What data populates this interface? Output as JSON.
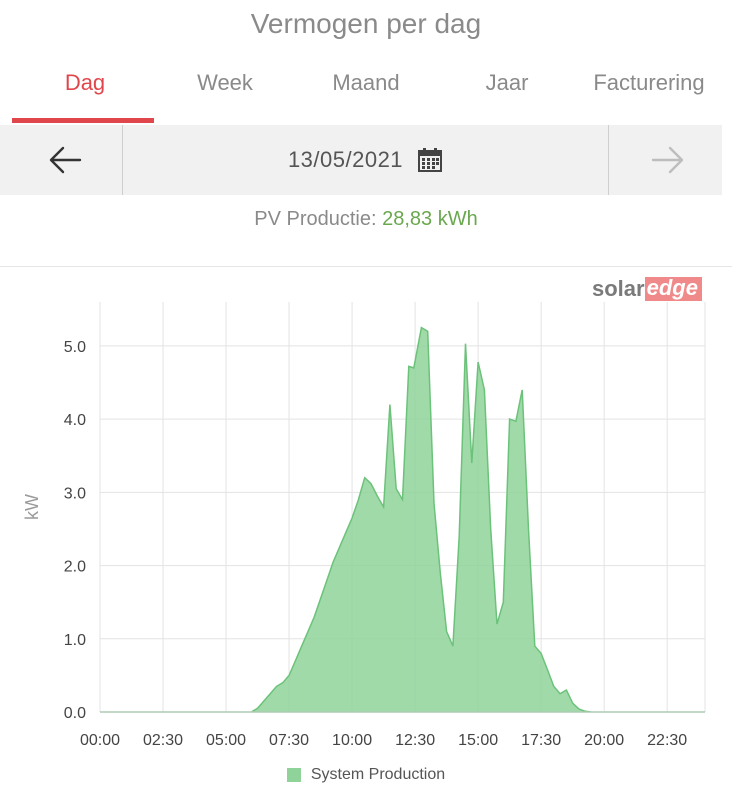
{
  "header": {
    "title": "Vermogen per dag"
  },
  "tabs": [
    {
      "label": "Dag",
      "active": true
    },
    {
      "label": "Week",
      "active": false
    },
    {
      "label": "Maand",
      "active": false
    },
    {
      "label": "Jaar",
      "active": false
    },
    {
      "label": "Facturering",
      "active": false
    }
  ],
  "datebar": {
    "date": "13/05/2021"
  },
  "summary": {
    "label": "PV Productie:",
    "value": "28,83 kWh"
  },
  "logo": {
    "solar": "solar",
    "edge": "edge"
  },
  "colors": {
    "accent": "#e0474c",
    "production": "#8fd39a",
    "value": "#6aa84f"
  },
  "chart_data": {
    "type": "area",
    "title": "",
    "xlabel": "",
    "ylabel": "kW",
    "ylim": [
      0,
      5.6
    ],
    "yticks": [
      0.0,
      1.0,
      2.0,
      3.0,
      4.0,
      5.0
    ],
    "ytick_labels": [
      "0.0",
      "1.0",
      "2.0",
      "3.0",
      "4.0",
      "5.0"
    ],
    "xlim_hours": [
      0,
      24
    ],
    "xticks_hours": [
      0,
      2.5,
      5,
      7.5,
      10,
      12.5,
      15,
      17.5,
      20,
      22.5
    ],
    "xtick_labels": [
      "00:00",
      "02:30",
      "05:00",
      "07:30",
      "10:00",
      "12:30",
      "15:00",
      "17:30",
      "20:00",
      "22:30"
    ],
    "grid": true,
    "legend_position": "bottom",
    "series": [
      {
        "name": "System Production",
        "color": "#8fd39a",
        "points": [
          [
            0,
            0
          ],
          [
            6.0,
            0
          ],
          [
            6.25,
            0.05
          ],
          [
            6.5,
            0.15
          ],
          [
            6.75,
            0.25
          ],
          [
            7.0,
            0.35
          ],
          [
            7.25,
            0.4
          ],
          [
            7.5,
            0.5
          ],
          [
            7.75,
            0.7
          ],
          [
            8.0,
            0.9
          ],
          [
            8.25,
            1.1
          ],
          [
            8.5,
            1.3
          ],
          [
            8.75,
            1.55
          ],
          [
            9.0,
            1.8
          ],
          [
            9.25,
            2.05
          ],
          [
            9.5,
            2.25
          ],
          [
            9.75,
            2.45
          ],
          [
            10.0,
            2.65
          ],
          [
            10.25,
            2.9
          ],
          [
            10.5,
            3.2
          ],
          [
            10.75,
            3.12
          ],
          [
            11.0,
            2.95
          ],
          [
            11.25,
            2.8
          ],
          [
            11.5,
            4.2
          ],
          [
            11.75,
            3.05
          ],
          [
            12.0,
            2.9
          ],
          [
            12.25,
            4.72
          ],
          [
            12.45,
            4.7
          ],
          [
            12.75,
            5.25
          ],
          [
            13.0,
            5.2
          ],
          [
            13.25,
            2.85
          ],
          [
            13.5,
            1.9
          ],
          [
            13.75,
            1.1
          ],
          [
            14.0,
            0.9
          ],
          [
            14.25,
            2.4
          ],
          [
            14.5,
            5.03
          ],
          [
            14.75,
            3.4
          ],
          [
            15.0,
            4.78
          ],
          [
            15.25,
            4.4
          ],
          [
            15.5,
            2.5
          ],
          [
            15.75,
            1.2
          ],
          [
            16.0,
            1.5
          ],
          [
            16.25,
            4.0
          ],
          [
            16.5,
            3.97
          ],
          [
            16.75,
            4.4
          ],
          [
            17.0,
            2.5
          ],
          [
            17.25,
            0.9
          ],
          [
            17.5,
            0.8
          ],
          [
            17.75,
            0.58
          ],
          [
            18.0,
            0.35
          ],
          [
            18.25,
            0.25
          ],
          [
            18.5,
            0.3
          ],
          [
            18.75,
            0.12
          ],
          [
            19.0,
            0.04
          ],
          [
            19.25,
            0.01
          ],
          [
            19.5,
            0
          ],
          [
            24,
            0
          ]
        ]
      }
    ]
  }
}
